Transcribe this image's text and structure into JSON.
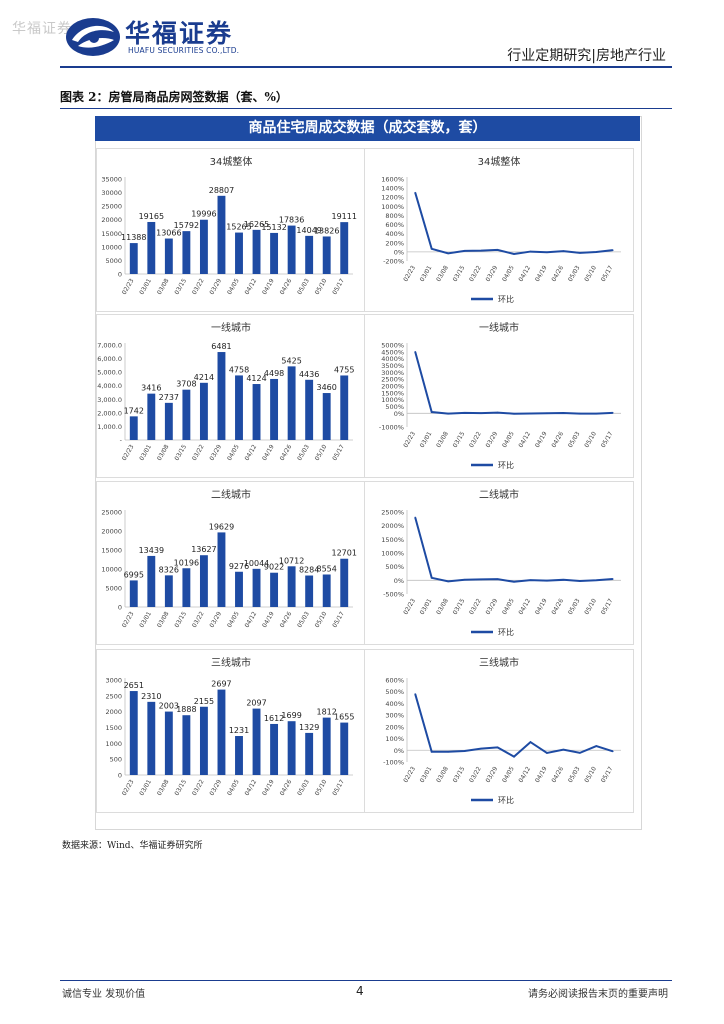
{
  "header": {
    "watermark": "华福证券",
    "logo_cn": "华福证券",
    "logo_en": "HUAFU SECURITIES CO.,LTD.",
    "category": "行业定期研究|房地产行业"
  },
  "figure": {
    "title": "图表 2：房管局商品房网签数据（套、%）",
    "banner": "商品住宅周成交数据（成交套数，套）",
    "source": "数据来源：Wind、华福证券研究所"
  },
  "footer": {
    "left": "诚信专业  发现价值",
    "page": "4",
    "right": "请务必阅读报告末页的重要声明"
  },
  "colors": {
    "bar": "#1e4ba3",
    "brand": "#1a3c8f",
    "axis": "#bfbfbf"
  },
  "chart_data": [
    {
      "type": "bar",
      "title": "34城整体",
      "categories": [
        "02/23",
        "03/01",
        "03/08",
        "03/15",
        "03/22",
        "03/29",
        "04/05",
        "04/12",
        "04/19",
        "04/26",
        "05/03",
        "05/10",
        "05/17"
      ],
      "values": [
        11388,
        19165,
        13066,
        15792,
        19996,
        28807,
        15265,
        16265,
        15132,
        17836,
        14049,
        13826,
        19111
      ],
      "labels": [
        "11388",
        "19165",
        "13066",
        "15792",
        "19996",
        "28807",
        "15265",
        "16265",
        "15132",
        "17836",
        "14049",
        "13826",
        "19111"
      ],
      "ylim": [
        0,
        35000
      ],
      "yticks": [
        0,
        5000,
        10000,
        15000,
        20000,
        25000,
        30000,
        35000
      ],
      "yticklabels": [
        "0",
        "5000",
        "10000",
        "15000",
        "20000",
        "25000",
        "30000",
        "35000"
      ]
    },
    {
      "type": "line",
      "title": "34城整体",
      "categories": [
        "02/23",
        "03/01",
        "03/08",
        "03/15",
        "03/22",
        "03/29",
        "04/05",
        "04/12",
        "04/19",
        "04/26",
        "05/03",
        "05/10",
        "05/17"
      ],
      "values": [
        1300,
        68,
        -32,
        21,
        27,
        44,
        -47,
        7,
        -7,
        18,
        -21,
        -2,
        38
      ],
      "legend": "环比",
      "ylim": [
        -200,
        1600
      ],
      "yticks": [
        -200,
        0,
        200,
        400,
        600,
        800,
        1000,
        1200,
        1400,
        1600
      ],
      "yticklabels": [
        "-200%",
        "0%",
        "200%",
        "400%",
        "600%",
        "800%",
        "1000%",
        "1200%",
        "1400%",
        "1600%"
      ]
    },
    {
      "type": "bar",
      "title": "一线城市",
      "categories": [
        "02/23",
        "03/01",
        "03/08",
        "03/15",
        "03/22",
        "03/29",
        "04/05",
        "04/12",
        "04/19",
        "04/26",
        "05/03",
        "05/10",
        "05/17"
      ],
      "values": [
        1742,
        3416,
        2737,
        3708,
        4214,
        6481,
        4758,
        4124,
        4498,
        5425,
        4436,
        3460,
        4755
      ],
      "labels": [
        "1742",
        "3416",
        "2737",
        "3708",
        "4214",
        "6481",
        "4758",
        "4124",
        "4498",
        "5425",
        "4436",
        "3460",
        "4755"
      ],
      "ylim": [
        0,
        7000
      ],
      "yticks": [
        0,
        1000,
        2000,
        3000,
        4000,
        5000,
        6000,
        7000
      ],
      "yticklabels": [
        "-",
        "1,000.0",
        "2,000.0",
        "3,000.0",
        "4,000.0",
        "5,000.0",
        "6,000.0",
        "7,000.0"
      ]
    },
    {
      "type": "line",
      "title": "一线城市",
      "categories": [
        "02/23",
        "03/01",
        "03/08",
        "03/15",
        "03/22",
        "03/29",
        "04/05",
        "04/12",
        "04/19",
        "04/26",
        "05/03",
        "05/10",
        "05/17"
      ],
      "values": [
        4500,
        96,
        -20,
        35,
        14,
        54,
        -27,
        -13,
        9,
        21,
        -18,
        -22,
        37
      ],
      "legend": "环比",
      "ylim": [
        -1000,
        5000
      ],
      "yticks": [
        -1000,
        0,
        500,
        1000,
        1500,
        2000,
        2500,
        3000,
        3500,
        4000,
        4500,
        5000
      ],
      "yticklabels": [
        "-1000%",
        "0%",
        "500%",
        "1000%",
        "1500%",
        "2000%",
        "2500%",
        "3000%",
        "3500%",
        "4000%",
        "4500%",
        "5000%"
      ]
    },
    {
      "type": "bar",
      "title": "二线城市",
      "categories": [
        "02/23",
        "03/01",
        "03/08",
        "03/15",
        "03/22",
        "03/29",
        "04/05",
        "04/12",
        "04/19",
        "04/26",
        "05/03",
        "05/10",
        "05/17"
      ],
      "values": [
        6995,
        13439,
        8326,
        10196,
        13627,
        19629,
        9276,
        10044,
        9022,
        10712,
        8284,
        8554,
        12701
      ],
      "labels": [
        "6995",
        "13439",
        "8326",
        "10196",
        "13627",
        "19629",
        "9276",
        "10044",
        "9022",
        "10712",
        "8284",
        "8554",
        "12701"
      ],
      "ylim": [
        0,
        25000
      ],
      "yticks": [
        0,
        5000,
        10000,
        15000,
        20000,
        25000
      ],
      "yticklabels": [
        "0",
        "5000",
        "10000",
        "15000",
        "20000",
        "25000"
      ]
    },
    {
      "type": "line",
      "title": "二线城市",
      "categories": [
        "02/23",
        "03/01",
        "03/08",
        "03/15",
        "03/22",
        "03/29",
        "04/05",
        "04/12",
        "04/19",
        "04/26",
        "05/03",
        "05/10",
        "05/17"
      ],
      "values": [
        2300,
        92,
        -38,
        22,
        34,
        44,
        -53,
        8,
        -10,
        19,
        -23,
        3,
        48
      ],
      "legend": "环比",
      "ylim": [
        -500,
        2500
      ],
      "yticks": [
        -500,
        0,
        500,
        1000,
        1500,
        2000,
        2500
      ],
      "yticklabels": [
        "-500%",
        "0%",
        "500%",
        "1000%",
        "1500%",
        "2000%",
        "2500%"
      ]
    },
    {
      "type": "bar",
      "title": "三线城市",
      "categories": [
        "02/23",
        "03/01",
        "03/08",
        "03/15",
        "03/22",
        "03/29",
        "04/05",
        "04/12",
        "04/19",
        "04/26",
        "05/03",
        "05/10",
        "05/17"
      ],
      "values": [
        2651,
        2310,
        2003,
        1888,
        2155,
        2697,
        1231,
        2097,
        1612,
        1699,
        1329,
        1812,
        1655
      ],
      "labels": [
        "2651",
        "2310",
        "2003",
        "1888",
        "2155",
        "2697",
        "1231",
        "2097",
        "1612",
        "1699",
        "1329",
        "1812",
        "1655"
      ],
      "ylim": [
        0,
        3000
      ],
      "yticks": [
        0,
        500,
        1000,
        1500,
        2000,
        2500,
        3000
      ],
      "yticklabels": [
        "0",
        "500",
        "1000",
        "1500",
        "2000",
        "2500",
        "3000"
      ]
    },
    {
      "type": "line",
      "title": "三线城市",
      "categories": [
        "02/23",
        "03/01",
        "03/08",
        "03/15",
        "03/22",
        "03/29",
        "04/05",
        "04/12",
        "04/19",
        "04/26",
        "05/03",
        "05/10",
        "05/17"
      ],
      "values": [
        480,
        -13,
        -13,
        -6,
        14,
        25,
        -54,
        70,
        -23,
        5,
        -22,
        36,
        -9
      ],
      "legend": "环比",
      "ylim": [
        -100,
        600
      ],
      "yticks": [
        -100,
        0,
        100,
        200,
        300,
        400,
        500,
        600
      ],
      "yticklabels": [
        "-100%",
        "0%",
        "100%",
        "200%",
        "300%",
        "400%",
        "500%",
        "600%"
      ]
    }
  ]
}
